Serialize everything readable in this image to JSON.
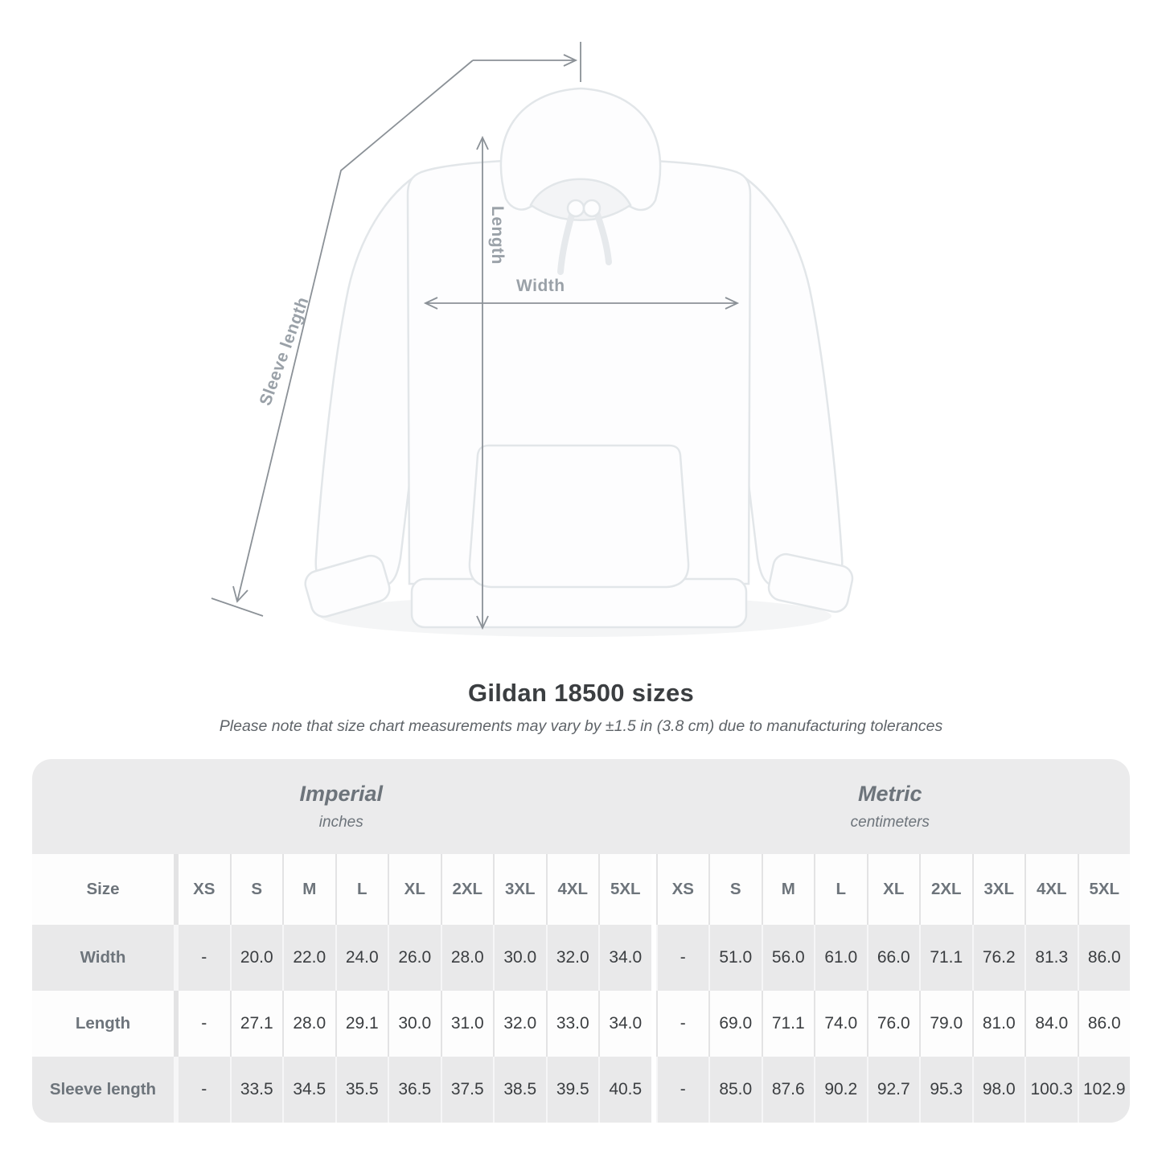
{
  "diagram": {
    "length_label": "Length",
    "width_label": "Width",
    "sleeve_label": "Sleeve length"
  },
  "chart_data": {
    "type": "table",
    "title": "Gildan 18500 sizes",
    "note": "Please note that size chart measurements may vary by ±1.5 in (3.8 cm) due to manufacturing tolerances",
    "groups": [
      {
        "label": "Imperial",
        "unit": "inches"
      },
      {
        "label": "Metric",
        "unit": "centimeters"
      }
    ],
    "size_row_label": "Size",
    "sizes": [
      "XS",
      "S",
      "M",
      "L",
      "XL",
      "2XL",
      "3XL",
      "4XL",
      "5XL"
    ],
    "rows": [
      {
        "label": "Width",
        "imperial": [
          "-",
          "20.0",
          "22.0",
          "24.0",
          "26.0",
          "28.0",
          "30.0",
          "32.0",
          "34.0"
        ],
        "metric": [
          "-",
          "51.0",
          "56.0",
          "61.0",
          "66.0",
          "71.1",
          "76.2",
          "81.3",
          "86.0"
        ]
      },
      {
        "label": "Length",
        "imperial": [
          "-",
          "27.1",
          "28.0",
          "29.1",
          "30.0",
          "31.0",
          "32.0",
          "33.0",
          "34.0"
        ],
        "metric": [
          "-",
          "69.0",
          "71.1",
          "74.0",
          "76.0",
          "79.0",
          "81.0",
          "84.0",
          "86.0"
        ]
      },
      {
        "label": "Sleeve length",
        "imperial": [
          "-",
          "33.5",
          "34.5",
          "35.5",
          "36.5",
          "37.5",
          "38.5",
          "39.5",
          "40.5"
        ],
        "metric": [
          "-",
          "85.0",
          "87.6",
          "90.2",
          "92.7",
          "95.3",
          "98.0",
          "100.3",
          "102.9"
        ]
      }
    ]
  },
  "colors": {
    "measure_line": "#8b9197",
    "diagram_label": "#9aa1a8",
    "header_band_bg": "#ebebec",
    "stripe_row_bg": "#e9e9ea",
    "heading_text": "#6d747b",
    "value_text": "#3b3e41",
    "garment_outline": "#e2e6e9"
  }
}
